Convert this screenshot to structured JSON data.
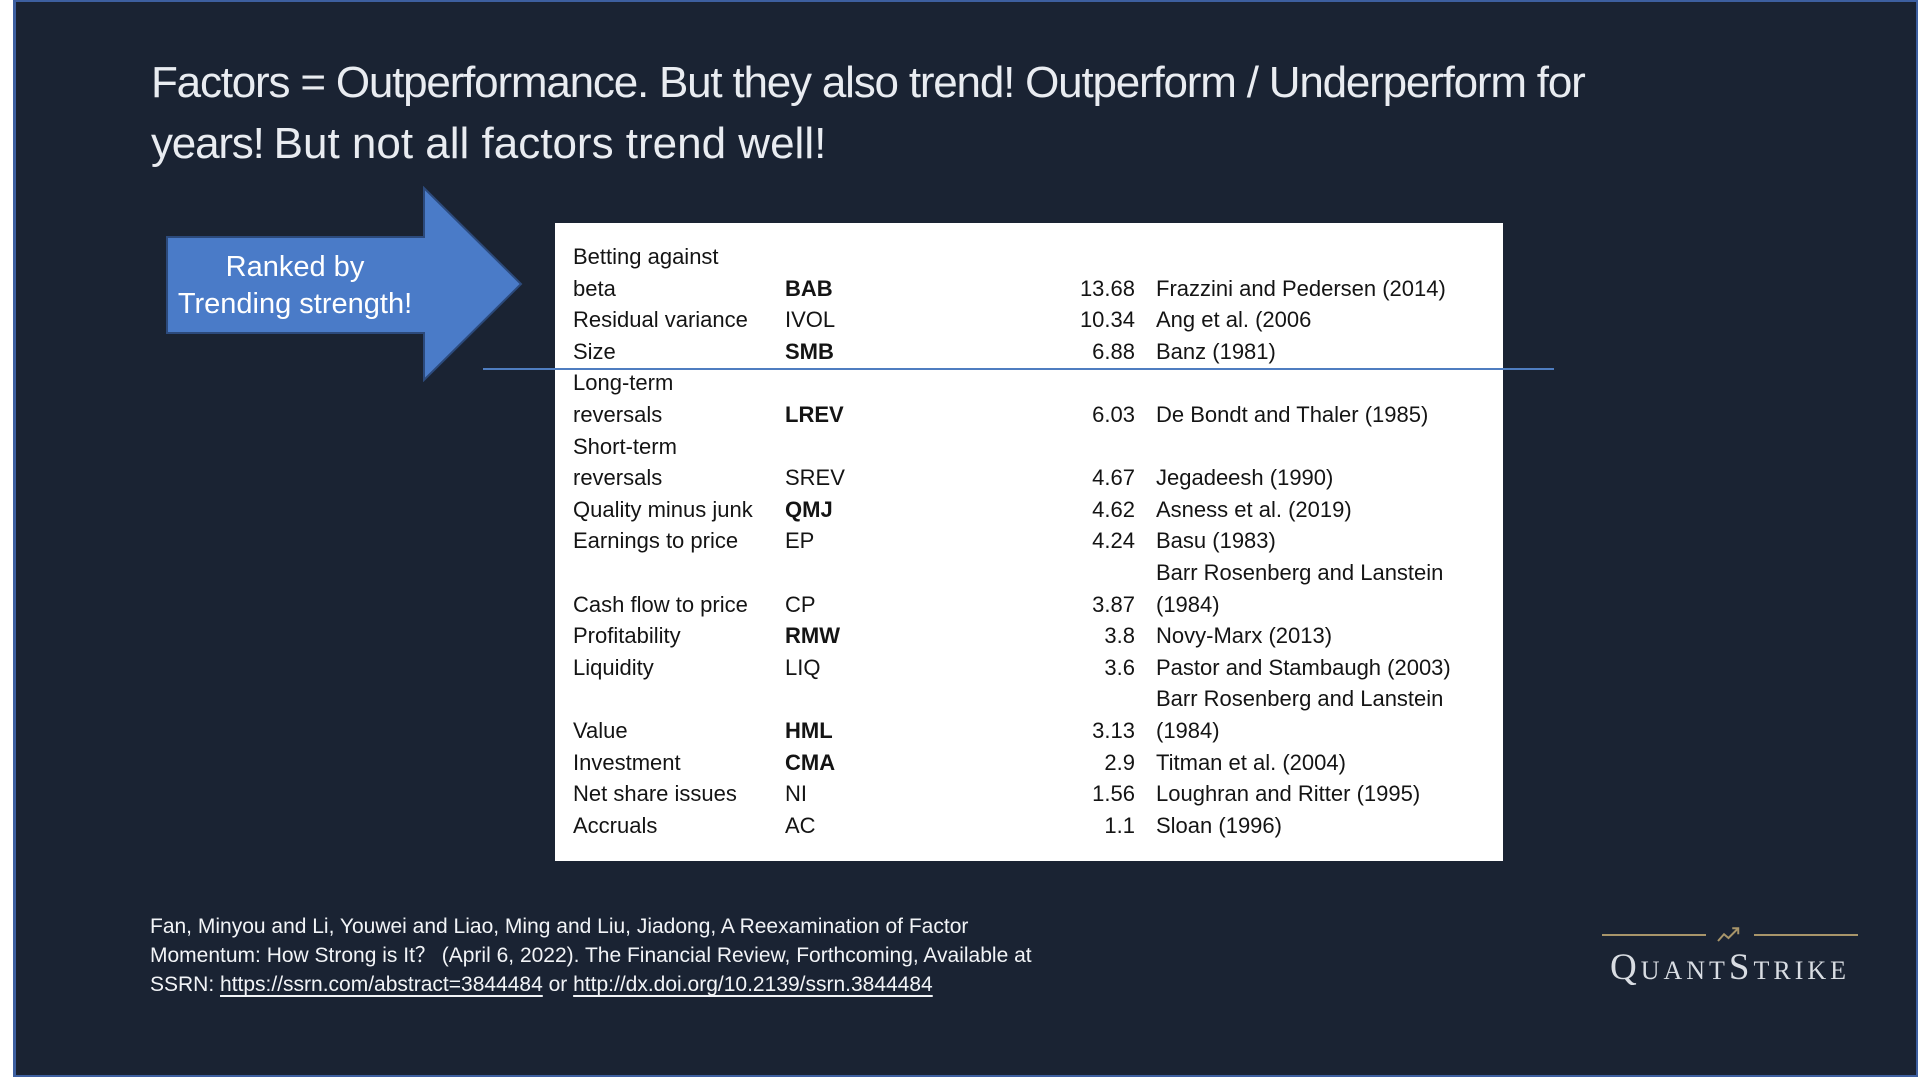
{
  "slide": {
    "title": {
      "line1": "Factors = Outperformance. But they also trend! Outperform / Underperform for",
      "line2_thin": "years!",
      "line2_regular": "But not all factors trend well!"
    },
    "callout": {
      "line1": "Ranked by",
      "line2": "Trending strength!"
    },
    "table": {
      "rows": [
        {
          "name": "Betting against",
          "abbrev": "",
          "value": "",
          "cite": ""
        },
        {
          "name": "beta",
          "abbrev": "BAB",
          "bold": true,
          "value": "13.68",
          "cite": "Frazzini and Pedersen (2014)"
        },
        {
          "name": "Residual variance",
          "abbrev": "IVOL",
          "value": "10.34",
          "cite": "Ang et al. (2006"
        },
        {
          "name": "Size",
          "abbrev": "SMB",
          "bold": true,
          "value": "6.88",
          "cite": "Banz (1981)"
        },
        {
          "name": "Long-term",
          "abbrev": "",
          "value": "",
          "cite": ""
        },
        {
          "name": "reversals",
          "abbrev": "LREV",
          "bold": true,
          "value": "6.03",
          "cite": "De Bondt and Thaler (1985)"
        },
        {
          "name": "Short-term",
          "abbrev": "",
          "value": "",
          "cite": ""
        },
        {
          "name": "reversals",
          "abbrev": "SREV",
          "value": "4.67",
          "cite": "Jegadeesh (1990)"
        },
        {
          "name": "Quality minus junk",
          "abbrev": "QMJ",
          "bold": true,
          "value": "4.62",
          "cite": "Asness et al. (2019)"
        },
        {
          "name": "Earnings to price",
          "abbrev": "EP",
          "value": "4.24",
          "cite": "Basu (1983)"
        },
        {
          "name": "",
          "abbrev": "",
          "value": "",
          "cite": "Barr Rosenberg and Lanstein"
        },
        {
          "name": "Cash flow to price",
          "abbrev": "CP",
          "value": "3.87",
          "cite": "(1984)"
        },
        {
          "name": "Profitability",
          "abbrev": "RMW",
          "bold": true,
          "value": "3.8",
          "cite": "Novy-Marx (2013)"
        },
        {
          "name": "Liquidity",
          "abbrev": "LIQ",
          "value": "3.6",
          "cite": "Pastor and Stambaugh (2003)"
        },
        {
          "name": "",
          "abbrev": "",
          "value": "",
          "cite": "Barr Rosenberg and Lanstein"
        },
        {
          "name": "Value",
          "abbrev": "HML",
          "bold": true,
          "value": "3.13",
          "cite": "(1984)"
        },
        {
          "name": "Investment",
          "abbrev": "CMA",
          "bold": true,
          "value": "2.9",
          "cite": "Titman et al. (2004)"
        },
        {
          "name": "Net share issues",
          "abbrev": "NI",
          "value": "1.56",
          "cite": "Loughran and Ritter (1995)"
        },
        {
          "name": "Accruals",
          "abbrev": "AC",
          "value": "1.1",
          "cite": "Sloan (1996)"
        }
      ]
    },
    "footer": {
      "cite_line1": "Fan, Minyou and Li, Youwei and Liao, Ming and Liu, Jiadong, A Reexamination of Factor",
      "cite_line2": "Momentum: How Strong is It？ (April 6, 2022). The Financial Review, Forthcoming, Available at",
      "cite_prefix": "SSRN: ",
      "link1": "https://ssrn.com/abstract=3844484",
      "cite_or": " or ",
      "link2": "http://dx.doi.org/10.2139/ssrn.3844484"
    },
    "logo": {
      "text": "QuantStrike"
    },
    "colors": {
      "background": "#1a2333",
      "frame_border": "#3d5fa0",
      "title_text": "#e9ecf1",
      "arrow_fill": "#4a7bc8",
      "arrow_border": "#2c4a7c",
      "divider": "#4f7dc0",
      "table_bg": "#ffffff",
      "gold": "#a8956a"
    }
  }
}
